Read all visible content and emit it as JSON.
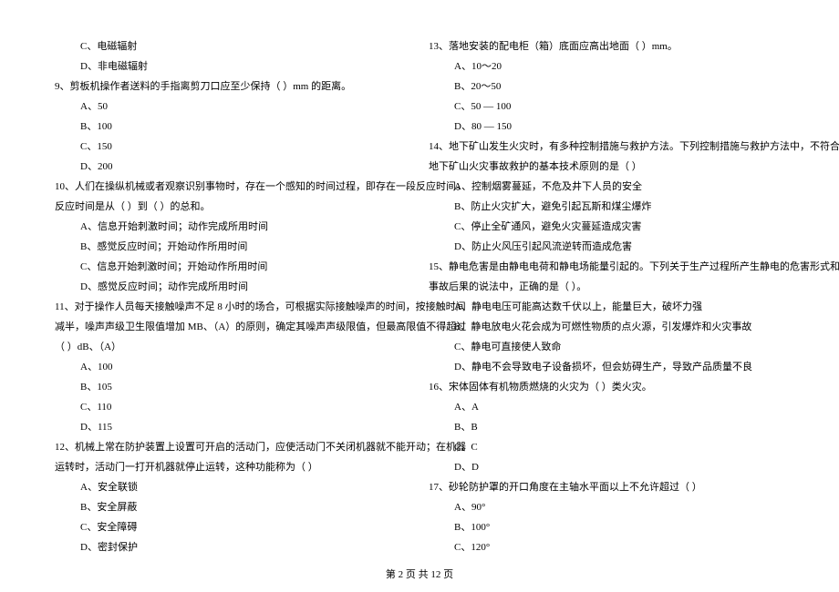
{
  "left": [
    {
      "cls": "indent-1",
      "text": "C、电磁辐射"
    },
    {
      "cls": "indent-1",
      "text": "D、非电磁辐射"
    },
    {
      "cls": "indent-0",
      "text": "9、剪板机操作者送料的手指离剪刀口应至少保持（     ）mm 的距离。"
    },
    {
      "cls": "indent-1",
      "text": "A、50"
    },
    {
      "cls": "indent-1",
      "text": "B、100"
    },
    {
      "cls": "indent-1",
      "text": "C、150"
    },
    {
      "cls": "indent-1",
      "text": "D、200"
    },
    {
      "cls": "indent-0",
      "text": "10、人们在操纵机械或者观察识别事物时，存在一个感知的时间过程，即存在一段反应时间。"
    },
    {
      "cls": "indent-0",
      "text": "反应时间是从（     ）到（     ）的总和。"
    },
    {
      "cls": "indent-1",
      "text": "A、信息开始刺激时间；动作完成所用时间"
    },
    {
      "cls": "indent-1",
      "text": "B、感觉反应时间；开始动作所用时间"
    },
    {
      "cls": "indent-1",
      "text": "C、信息开始刺激时间；开始动作所用时间"
    },
    {
      "cls": "indent-1",
      "text": "D、感觉反应时间；动作完成所用时间"
    },
    {
      "cls": "indent-0",
      "text": "11、对于操作人员每天接触噪声不足 8 小时的场合，可根据实际接触噪声的时间，按接触时间"
    },
    {
      "cls": "indent-0",
      "text": "减半，噪声声级卫生限值增加 MB、（A）的原则，确定其噪声声级限值，但最高限值不得超过"
    },
    {
      "cls": "indent-0",
      "text": "（     ）dB、（A）"
    },
    {
      "cls": "indent-1",
      "text": "A、100"
    },
    {
      "cls": "indent-1",
      "text": "B、105"
    },
    {
      "cls": "indent-1",
      "text": "C、110"
    },
    {
      "cls": "indent-1",
      "text": "D、115"
    },
    {
      "cls": "indent-0",
      "text": "12、机械上常在防护装置上设置可开启的活动门，应使活动门不关闭机器就不能开动；在机器"
    },
    {
      "cls": "indent-0",
      "text": "运转时，活动门一打开机器就停止运转，这种功能称为（     ）"
    },
    {
      "cls": "indent-1",
      "text": "A、安全联锁"
    },
    {
      "cls": "indent-1",
      "text": "B、安全屏蔽"
    },
    {
      "cls": "indent-1",
      "text": "C、安全障碍"
    },
    {
      "cls": "indent-1",
      "text": "D、密封保护"
    }
  ],
  "right": [
    {
      "cls": "indent-0",
      "text": "13、落地安装的配电柜（箱）底面应高出地面（     ）mm。"
    },
    {
      "cls": "indent-1",
      "text": "A、10～20"
    },
    {
      "cls": "indent-1",
      "text": "B、20～50"
    },
    {
      "cls": "indent-1",
      "text": "C、50 — 100"
    },
    {
      "cls": "indent-1",
      "text": "D、80 — 150"
    },
    {
      "cls": "indent-0",
      "text": "14、地下矿山发生火灾时，有多种控制措施与救护方法。下列控制措施与救护方法中，不符合"
    },
    {
      "cls": "indent-0",
      "text": "地下矿山火灾事故救护的基本技术原则的是（     ）"
    },
    {
      "cls": "indent-1",
      "text": "A、控制烟雾蔓延，不危及井下人员的安全"
    },
    {
      "cls": "indent-1",
      "text": "B、防止火灾扩大，避免引起瓦斯和煤尘爆炸"
    },
    {
      "cls": "indent-1",
      "text": "C、停止全矿通风，避免火灾蔓延造成灾害"
    },
    {
      "cls": "indent-1",
      "text": "D、防止火风压引起风流逆转而造成危害"
    },
    {
      "cls": "indent-0",
      "text": "15、静电危害是由静电电荷和静电场能量引起的。下列关于生产过程所产生静电的危害形式和"
    },
    {
      "cls": "indent-0",
      "text": "事故后果的说法中，正确的是（     ）。"
    },
    {
      "cls": "indent-1",
      "text": "A、静电电压可能高达数千伏以上，能量巨大，破坏力强"
    },
    {
      "cls": "indent-1",
      "text": "B、静电放电火花会成为可燃性物质的点火源，引发爆炸和火灾事故"
    },
    {
      "cls": "indent-1",
      "text": "C、静电可直接使人致命"
    },
    {
      "cls": "indent-1",
      "text": "D、静电不会导致电子设备损坏，但会妨碍生产，导致产品质量不良"
    },
    {
      "cls": "indent-0",
      "text": "16、宋体固体有机物质燃烧的火灾为（     ）类火灾。"
    },
    {
      "cls": "indent-1",
      "text": "A、A"
    },
    {
      "cls": "indent-1",
      "text": "B、B"
    },
    {
      "cls": "indent-1",
      "text": "C、C"
    },
    {
      "cls": "indent-1",
      "text": "D、D"
    },
    {
      "cls": "indent-0",
      "text": "17、砂轮防护罩的开口角度在主轴水平面以上不允许超过（     ）"
    },
    {
      "cls": "indent-1",
      "text": "A、90°"
    },
    {
      "cls": "indent-1",
      "text": "B、100°"
    },
    {
      "cls": "indent-1",
      "text": "C、120°"
    }
  ],
  "footer": "第 2 页 共 12 页"
}
